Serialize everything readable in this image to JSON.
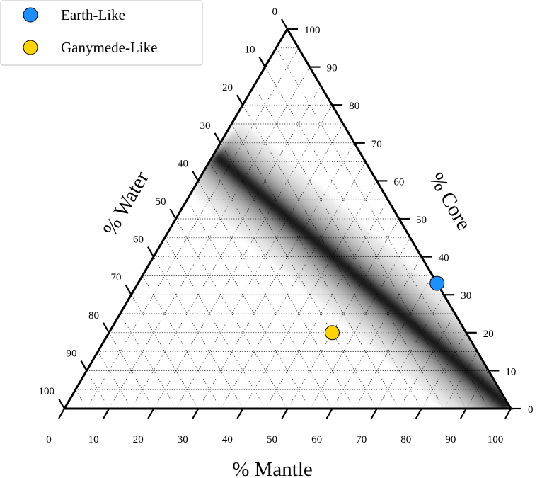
{
  "chart_data": {
    "type": "scatter",
    "subtype": "ternary",
    "title": "",
    "axes": {
      "mantle": {
        "label": "% Mantle",
        "ticks": [
          "0",
          "10",
          "20",
          "30",
          "40",
          "50",
          "60",
          "70",
          "80",
          "90",
          "100"
        ]
      },
      "core": {
        "label": "% Core",
        "ticks": [
          "0",
          "10",
          "20",
          "30",
          "40",
          "50",
          "60",
          "70",
          "80",
          "90",
          "100"
        ]
      },
      "water": {
        "label": "% Water",
        "ticks": [
          "0",
          "10",
          "20",
          "30",
          "40",
          "50",
          "60",
          "70",
          "80",
          "90",
          "100"
        ]
      }
    },
    "grid": true,
    "grid_step": 5,
    "density_band": {
      "description_units": "mantle %, core %",
      "center_line": [
        [
          0,
          67
        ],
        [
          100,
          0
        ]
      ],
      "color": "#000000"
    },
    "series": [
      {
        "name": "Earth-Like",
        "color": "#1e8fff",
        "points": [
          {
            "mantle": 67,
            "core": 33,
            "water": 0
          }
        ]
      },
      {
        "name": "Ganymede-Like",
        "color": "#ffd200",
        "points": [
          {
            "mantle": 50,
            "core": 20,
            "water": 30
          }
        ]
      }
    ],
    "legend": {
      "placement": "top-left"
    }
  }
}
